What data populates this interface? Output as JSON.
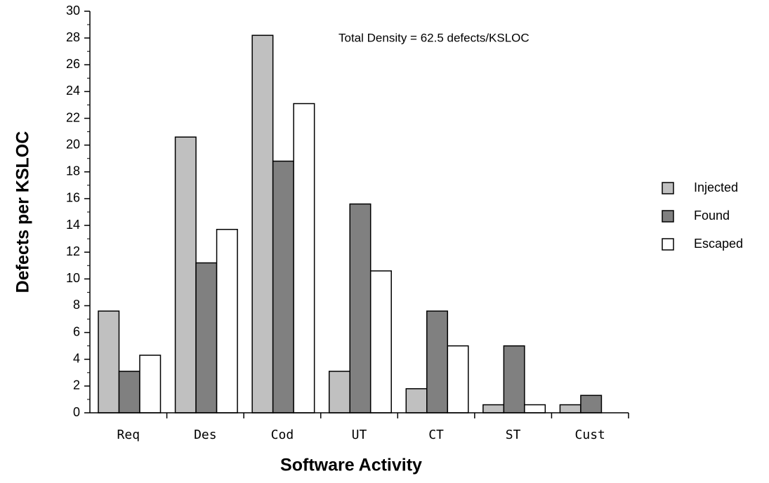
{
  "chart_data": {
    "type": "bar",
    "xlabel": "Software Activity",
    "ylabel": "Defects per KSLOC",
    "annotation": "Total Density = 62.5 defects/KSLOC",
    "categories": [
      "Req",
      "Des",
      "Cod",
      "UT",
      "CT",
      "ST",
      "Cust"
    ],
    "series": [
      {
        "name": "Injected",
        "color": "#c0c0c0",
        "values": [
          7.6,
          20.6,
          28.2,
          3.1,
          1.8,
          0.6,
          0.6
        ]
      },
      {
        "name": "Found",
        "color": "#808080",
        "values": [
          3.1,
          11.2,
          18.8,
          15.6,
          7.6,
          5.0,
          1.3
        ]
      },
      {
        "name": "Escaped",
        "color": "#ffffff",
        "values": [
          4.3,
          13.7,
          23.1,
          10.6,
          5.0,
          0.6,
          null
        ]
      }
    ],
    "ylim": [
      0,
      30
    ],
    "yticks": [
      0,
      2,
      4,
      6,
      8,
      10,
      12,
      14,
      16,
      18,
      20,
      22,
      24,
      26,
      28,
      30
    ],
    "legend": "right"
  }
}
